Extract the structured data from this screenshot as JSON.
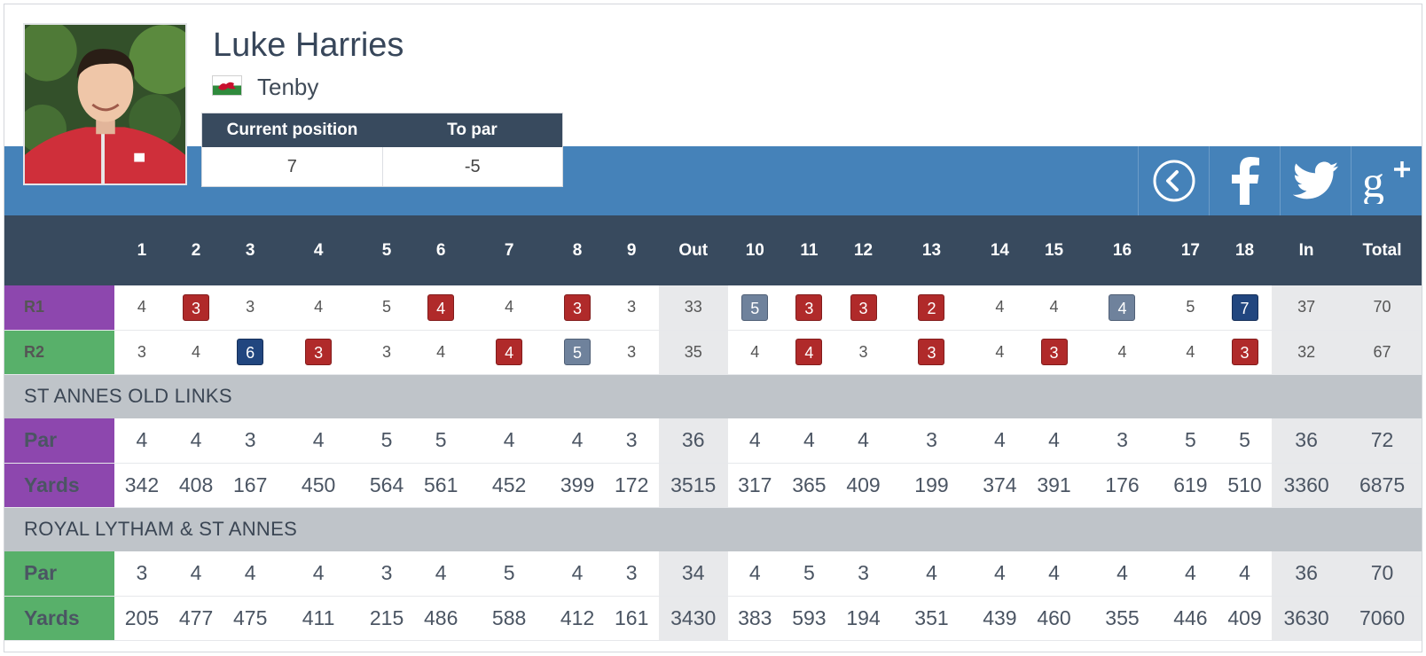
{
  "player": {
    "name": "Luke Harries",
    "club": "Tenby",
    "flag_icon": "wales-flag-icon"
  },
  "position": {
    "headers": [
      "Current position",
      "To par"
    ],
    "values": [
      "7",
      "-5"
    ]
  },
  "share": [
    "back-icon",
    "facebook-icon",
    "twitter-icon",
    "google-plus-icon"
  ],
  "columns": [
    "1",
    "2",
    "3",
    "4",
    "5",
    "6",
    "7",
    "8",
    "9",
    "Out",
    "10",
    "11",
    "12",
    "13",
    "14",
    "15",
    "16",
    "17",
    "18",
    "In",
    "Total"
  ],
  "rounds": [
    {
      "label": "R1",
      "color": "#8d47ae",
      "cells": [
        {
          "v": "4"
        },
        {
          "v": "3",
          "b": "birdie"
        },
        {
          "v": "3"
        },
        {
          "v": "4"
        },
        {
          "v": "5"
        },
        {
          "v": "4",
          "b": "birdie"
        },
        {
          "v": "4"
        },
        {
          "v": "3",
          "b": "birdie"
        },
        {
          "v": "3"
        },
        {
          "v": "33",
          "sum": true
        },
        {
          "v": "5",
          "b": "bogey"
        },
        {
          "v": "3",
          "b": "birdie"
        },
        {
          "v": "3",
          "b": "birdie"
        },
        {
          "v": "2",
          "b": "birdie"
        },
        {
          "v": "4"
        },
        {
          "v": "4"
        },
        {
          "v": "4",
          "b": "bogey"
        },
        {
          "v": "5"
        },
        {
          "v": "7",
          "b": "dbl"
        },
        {
          "v": "37",
          "sum": true
        },
        {
          "v": "70",
          "sum": true
        }
      ]
    },
    {
      "label": "R2",
      "color": "#58b06a",
      "cells": [
        {
          "v": "3"
        },
        {
          "v": "4"
        },
        {
          "v": "6",
          "b": "dbl"
        },
        {
          "v": "3",
          "b": "birdie"
        },
        {
          "v": "3"
        },
        {
          "v": "4"
        },
        {
          "v": "4",
          "b": "birdie"
        },
        {
          "v": "5",
          "b": "bogey"
        },
        {
          "v": "3"
        },
        {
          "v": "35",
          "sum": true
        },
        {
          "v": "4"
        },
        {
          "v": "4",
          "b": "birdie"
        },
        {
          "v": "3"
        },
        {
          "v": "3",
          "b": "birdie"
        },
        {
          "v": "4"
        },
        {
          "v": "3",
          "b": "birdie"
        },
        {
          "v": "4"
        },
        {
          "v": "4"
        },
        {
          "v": "3",
          "b": "birdie"
        },
        {
          "v": "32",
          "sum": true
        },
        {
          "v": "67",
          "sum": true
        }
      ]
    }
  ],
  "courses": [
    {
      "name": "ST ANNES OLD LINKS",
      "color": "purple",
      "par": [
        "4",
        "4",
        "3",
        "4",
        "5",
        "5",
        "4",
        "4",
        "3",
        "36",
        "4",
        "4",
        "4",
        "3",
        "4",
        "4",
        "3",
        "5",
        "5",
        "36",
        "72"
      ],
      "yards": [
        "342",
        "408",
        "167",
        "450",
        "564",
        "561",
        "452",
        "399",
        "172",
        "3515",
        "317",
        "365",
        "409",
        "199",
        "374",
        "391",
        "176",
        "619",
        "510",
        "3360",
        "6875"
      ]
    },
    {
      "name": "ROYAL LYTHAM & ST ANNES",
      "color": "green",
      "par": [
        "3",
        "4",
        "4",
        "4",
        "3",
        "4",
        "5",
        "4",
        "3",
        "34",
        "4",
        "5",
        "3",
        "4",
        "4",
        "4",
        "4",
        "4",
        "4",
        "36",
        "70"
      ],
      "yards": [
        "205",
        "477",
        "475",
        "411",
        "215",
        "486",
        "588",
        "412",
        "161",
        "3430",
        "383",
        "593",
        "194",
        "351",
        "439",
        "460",
        "355",
        "446",
        "409",
        "3630",
        "7060"
      ]
    }
  ],
  "labels": {
    "par": "Par",
    "yards": "Yards"
  }
}
